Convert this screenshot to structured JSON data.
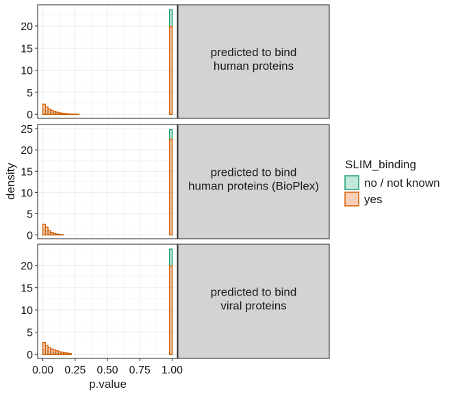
{
  "chart_data": {
    "type": "bar",
    "subtype": "faceted density histogram",
    "x_label": "p.value",
    "y_label": "density",
    "xlim": [
      -0.04,
      1.04
    ],
    "x_ticks": [
      "0.00",
      "0.25",
      "0.50",
      "0.75",
      "1.00"
    ],
    "x_tick_values": [
      0,
      0.25,
      0.5,
      0.75,
      1.0
    ],
    "bin_width": 0.02,
    "legend": {
      "title": "SLIM_binding",
      "position": "right",
      "entries": [
        {
          "label": "no / not known",
          "fill": "#b2e2d2",
          "stroke": "#1b9e77"
        },
        {
          "label": "yes",
          "fill": "#f6c2a8",
          "stroke": "#d95f02"
        }
      ]
    },
    "panels": [
      {
        "strip_label_lines": [
          "predicted to bind",
          "human proteins"
        ],
        "ylim": [
          -0.9,
          24.8
        ],
        "y_ticks": [
          0,
          5,
          10,
          15,
          20
        ],
        "series": [
          {
            "name": "no / not known",
            "bins": [
              [
                0.0,
                1.0
              ],
              [
                0.02,
                0.8
              ],
              [
                0.04,
                0.6
              ],
              [
                0.06,
                0.45
              ],
              [
                0.08,
                0.35
              ],
              [
                0.1,
                0.25
              ],
              [
                0.12,
                0.2
              ],
              [
                0.14,
                0.15
              ],
              [
                0.16,
                0.1
              ],
              [
                0.18,
                0.08
              ],
              [
                0.2,
                0.05
              ],
              [
                0.22,
                0.04
              ],
              [
                0.24,
                0.03
              ],
              [
                0.26,
                0.02
              ],
              [
                0.98,
                23.7
              ]
            ]
          },
          {
            "name": "yes",
            "bins": [
              [
                0.0,
                2.3
              ],
              [
                0.02,
                1.7
              ],
              [
                0.04,
                1.2
              ],
              [
                0.06,
                0.9
              ],
              [
                0.08,
                0.7
              ],
              [
                0.1,
                0.5
              ],
              [
                0.12,
                0.35
              ],
              [
                0.14,
                0.25
              ],
              [
                0.16,
                0.2
              ],
              [
                0.18,
                0.15
              ],
              [
                0.2,
                0.1
              ],
              [
                0.22,
                0.07
              ],
              [
                0.24,
                0.05
              ],
              [
                0.26,
                0.03
              ],
              [
                0.98,
                19.9
              ]
            ]
          }
        ]
      },
      {
        "strip_label_lines": [
          "predicted to bind",
          "human proteins (BioPlex)"
        ],
        "ylim": [
          -0.9,
          26.0
        ],
        "y_ticks": [
          0,
          5,
          10,
          15,
          20,
          25
        ],
        "series": [
          {
            "name": "no / not known",
            "bins": [
              [
                0.0,
                1.2
              ],
              [
                0.02,
                0.8
              ],
              [
                0.04,
                0.6
              ],
              [
                0.06,
                0.4
              ],
              [
                0.08,
                0.3
              ],
              [
                0.1,
                0.2
              ],
              [
                0.12,
                0.1
              ],
              [
                0.14,
                0.05
              ],
              [
                0.98,
                24.8
              ]
            ]
          },
          {
            "name": "yes",
            "bins": [
              [
                0.0,
                2.5
              ],
              [
                0.02,
                1.8
              ],
              [
                0.04,
                1.0
              ],
              [
                0.06,
                0.6
              ],
              [
                0.08,
                0.3
              ],
              [
                0.1,
                0.15
              ],
              [
                0.12,
                0.08
              ],
              [
                0.14,
                0.04
              ],
              [
                0.98,
                22.5
              ]
            ]
          }
        ]
      },
      {
        "strip_label_lines": [
          "predicted to bind",
          "viral proteins"
        ],
        "ylim": [
          -0.9,
          24.8
        ],
        "y_ticks": [
          0,
          5,
          10,
          15,
          20
        ],
        "series": [
          {
            "name": "no / not known",
            "bins": [
              [
                0.0,
                1.1
              ],
              [
                0.02,
                0.8
              ],
              [
                0.04,
                0.6
              ],
              [
                0.06,
                0.5
              ],
              [
                0.08,
                0.4
              ],
              [
                0.1,
                0.3
              ],
              [
                0.12,
                0.25
              ],
              [
                0.14,
                0.2
              ],
              [
                0.16,
                0.15
              ],
              [
                0.18,
                0.12
              ],
              [
                0.2,
                0.1
              ],
              [
                0.98,
                23.7
              ]
            ]
          },
          {
            "name": "yes",
            "bins": [
              [
                0.0,
                2.7
              ],
              [
                0.02,
                2.0
              ],
              [
                0.04,
                1.5
              ],
              [
                0.06,
                1.2
              ],
              [
                0.08,
                1.0
              ],
              [
                0.1,
                0.8
              ],
              [
                0.12,
                0.6
              ],
              [
                0.14,
                0.5
              ],
              [
                0.16,
                0.4
              ],
              [
                0.18,
                0.3
              ],
              [
                0.2,
                0.2
              ],
              [
                0.98,
                19.9
              ]
            ]
          }
        ]
      }
    ]
  }
}
